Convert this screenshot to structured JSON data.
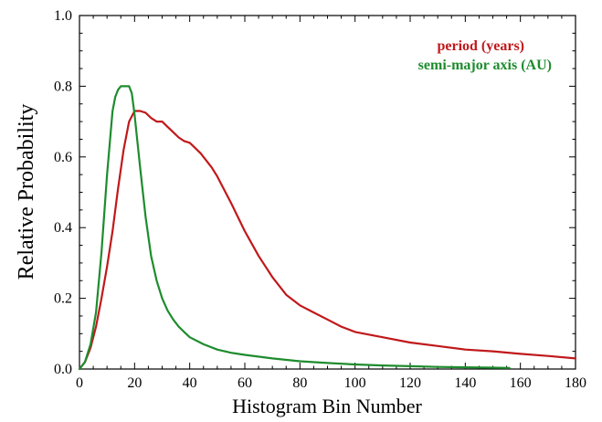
{
  "chart_data": {
    "type": "line",
    "xlabel": "Histogram Bin Number",
    "ylabel": "Relative Probability",
    "xlim": [
      0,
      180
    ],
    "ylim": [
      0,
      1.0
    ],
    "x_ticks": [
      0,
      20,
      40,
      60,
      80,
      100,
      120,
      140,
      160,
      180
    ],
    "x_tick_labels": [
      "0",
      "20",
      "40",
      "60",
      "80",
      "100",
      "120",
      "140",
      "160",
      "180"
    ],
    "y_ticks": [
      0,
      0.2,
      0.4,
      0.6,
      0.8,
      1.0
    ],
    "y_tick_labels": [
      "0.0",
      "0.2",
      "0.4",
      "0.6",
      "0.8",
      "1.0"
    ],
    "grid": false,
    "legend_position": "top-right",
    "series": [
      {
        "name": "period (years)",
        "color": "#c0191b",
        "x": [
          0,
          2,
          4,
          6,
          8,
          10,
          12,
          14,
          16,
          18,
          20,
          22,
          24,
          26,
          28,
          30,
          32,
          34,
          36,
          38,
          40,
          42,
          44,
          46,
          48,
          50,
          55,
          60,
          65,
          70,
          75,
          80,
          85,
          90,
          95,
          100,
          110,
          120,
          130,
          140,
          150,
          160,
          170,
          180
        ],
        "y": [
          0.0,
          0.02,
          0.06,
          0.12,
          0.2,
          0.29,
          0.39,
          0.51,
          0.62,
          0.7,
          0.73,
          0.73,
          0.725,
          0.71,
          0.7,
          0.7,
          0.685,
          0.67,
          0.655,
          0.645,
          0.64,
          0.625,
          0.61,
          0.59,
          0.57,
          0.545,
          0.47,
          0.39,
          0.32,
          0.26,
          0.21,
          0.18,
          0.16,
          0.14,
          0.12,
          0.105,
          0.09,
          0.075,
          0.065,
          0.055,
          0.05,
          0.043,
          0.037,
          0.03
        ]
      },
      {
        "name": "semi-major axis (AU)",
        "color": "#1e8c2e",
        "x": [
          0,
          2,
          4,
          6,
          8,
          10,
          12,
          13,
          14,
          15,
          16,
          17,
          18,
          19,
          20,
          22,
          24,
          26,
          28,
          30,
          32,
          34,
          36,
          38,
          40,
          45,
          50,
          55,
          60,
          70,
          80,
          90,
          100,
          110,
          120,
          130,
          140,
          150,
          156
        ],
        "y": [
          0.0,
          0.02,
          0.07,
          0.16,
          0.33,
          0.55,
          0.73,
          0.77,
          0.79,
          0.8,
          0.8,
          0.8,
          0.8,
          0.78,
          0.72,
          0.57,
          0.43,
          0.32,
          0.25,
          0.2,
          0.165,
          0.14,
          0.12,
          0.105,
          0.09,
          0.07,
          0.055,
          0.046,
          0.04,
          0.03,
          0.022,
          0.017,
          0.013,
          0.01,
          0.008,
          0.006,
          0.005,
          0.004,
          0.003
        ]
      }
    ]
  }
}
